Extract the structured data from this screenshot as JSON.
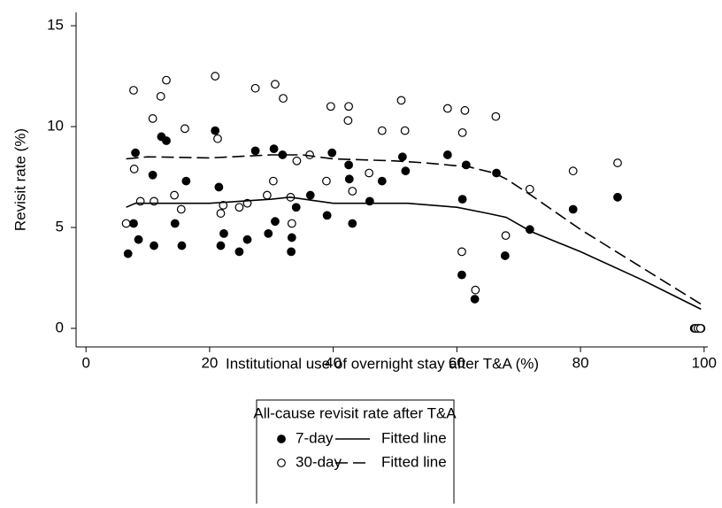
{
  "chart_data": {
    "type": "scatter",
    "xlabel": "Institutional use of overnight stay after T&A (%)",
    "ylabel": "Revisit rate (%)",
    "xlim": [
      -1.6,
      100.6
    ],
    "ylim": [
      -0.92,
      15.66
    ],
    "xticks": [
      0,
      20,
      40,
      60,
      80,
      100
    ],
    "yticks": [
      0,
      5,
      10,
      15
    ],
    "legend_title": "All-cause revisit rate after T&A",
    "legend_position": "bottom",
    "series": [
      {
        "name": "7-day",
        "kind": "scatter",
        "marker": "filled",
        "color": "#000000",
        "x": [
          6.8,
          7.7,
          8.0,
          8.5,
          10.8,
          11.0,
          12.2,
          13.0,
          14.4,
          15.5,
          16.2,
          20.9,
          21.5,
          21.8,
          22.3,
          24.8,
          26.1,
          27.4,
          29.5,
          30.4,
          30.6,
          31.8,
          33.3,
          33.2,
          34.0,
          36.3,
          39.0,
          39.8,
          42.5,
          42.6,
          43.1,
          45.9,
          47.9,
          51.2,
          51.7,
          58.5,
          60.9,
          60.8,
          61.5,
          62.9,
          66.4,
          67.8,
          71.8,
          78.8,
          86.0,
          98.4,
          98.9,
          99.3,
          99.5
        ],
        "values": [
          3.7,
          5.2,
          8.7,
          4.4,
          7.6,
          4.1,
          9.5,
          9.3,
          5.2,
          4.1,
          7.3,
          9.8,
          7.0,
          4.1,
          4.7,
          3.8,
          4.4,
          8.8,
          4.7,
          8.9,
          5.3,
          8.6,
          4.5,
          3.8,
          6.0,
          6.6,
          5.6,
          8.7,
          8.1,
          7.4,
          5.2,
          6.3,
          7.3,
          8.5,
          7.8,
          8.6,
          6.4,
          2.65,
          8.1,
          1.45,
          7.7,
          3.6,
          4.9,
          5.9,
          6.5,
          0,
          0,
          0,
          0
        ]
      },
      {
        "name": "30-day",
        "kind": "scatter",
        "marker": "open",
        "color": "#000000",
        "x": [
          6.5,
          7.8,
          7.7,
          8.8,
          10.8,
          11.0,
          12.1,
          13.0,
          14.3,
          15.4,
          16.0,
          20.9,
          21.3,
          21.8,
          22.2,
          24.8,
          26.1,
          27.4,
          29.3,
          30.3,
          30.6,
          31.9,
          33.1,
          33.3,
          34.1,
          36.2,
          38.9,
          39.6,
          42.4,
          42.5,
          43.1,
          45.8,
          47.9,
          51.0,
          51.6,
          58.5,
          60.8,
          60.9,
          61.3,
          63.0,
          66.3,
          67.9,
          71.8,
          78.8,
          86.0,
          98.6,
          99.0,
          99.4
        ],
        "values": [
          5.2,
          7.9,
          11.8,
          6.3,
          10.4,
          6.3,
          11.5,
          12.3,
          6.6,
          5.9,
          9.9,
          12.5,
          9.4,
          5.7,
          6.1,
          6.0,
          6.2,
          11.9,
          6.6,
          7.3,
          12.1,
          11.4,
          6.5,
          5.2,
          8.3,
          8.6,
          7.3,
          11.0,
          10.3,
          11.0,
          6.8,
          7.7,
          9.8,
          11.3,
          9.8,
          10.9,
          3.8,
          9.7,
          10.8,
          1.9,
          10.5,
          4.6,
          6.9,
          7.8,
          8.2,
          0,
          0,
          0
        ]
      },
      {
        "name": "Fitted line",
        "kind": "line",
        "dash": "solid",
        "color": "#000000",
        "x": [
          6.5,
          8,
          20,
          30,
          33,
          40,
          45,
          52,
          60,
          65,
          68,
          72,
          80,
          90,
          99.5
        ],
        "values": [
          6.0,
          6.2,
          6.2,
          6.4,
          6.5,
          6.2,
          6.2,
          6.2,
          6.0,
          5.7,
          5.5,
          4.8,
          3.8,
          2.4,
          0.95
        ]
      },
      {
        "name": "Fitted line",
        "kind": "line",
        "dash": "dashed",
        "color": "#000000",
        "x": [
          6.5,
          10,
          20,
          30,
          35,
          40,
          50,
          55,
          62,
          66,
          68,
          72,
          80,
          90,
          99.5
        ],
        "values": [
          8.4,
          8.5,
          8.45,
          8.6,
          8.6,
          8.4,
          8.3,
          8.2,
          8.0,
          7.7,
          7.4,
          6.6,
          4.9,
          3.0,
          1.2
        ]
      }
    ]
  }
}
